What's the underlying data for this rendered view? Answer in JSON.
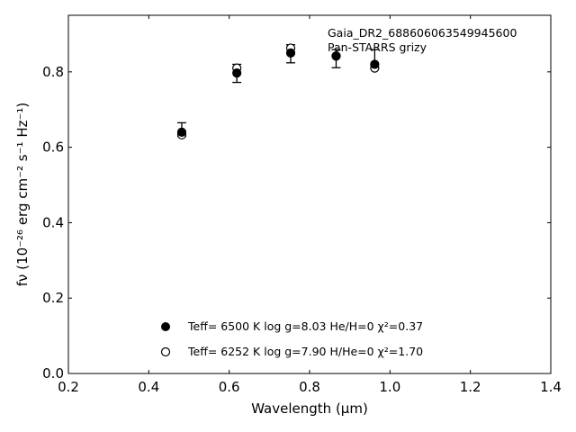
{
  "chart_data": {
    "type": "scatter",
    "annotation": [
      "Gaia_DR2_688606063549945600",
      "Pan-STARRS grizy"
    ],
    "xlabel": "Wavelength (μm)",
    "ylabel": "fν (10⁻²⁶ erg cm⁻² s⁻¹ Hz⁻¹)",
    "xlim": [
      0.2,
      1.4
    ],
    "ylim": [
      0.0,
      0.95
    ],
    "xticks": [
      0.2,
      0.4,
      0.6,
      0.8,
      1.0,
      1.2,
      1.4
    ],
    "xtick_labels": [
      "0.2",
      "0.4",
      "0.6",
      "0.8",
      "1.0",
      "1.2",
      "1.4"
    ],
    "yticks": [
      0.0,
      0.2,
      0.4,
      0.6,
      0.8
    ],
    "ytick_labels": [
      "0.0",
      "0.2",
      "0.4",
      "0.6",
      "0.8"
    ],
    "grid": false,
    "legend_position": "lower-center",
    "observed": {
      "x": [
        0.482,
        0.619,
        0.753,
        0.866,
        0.962
      ],
      "y": [
        0.647,
        0.796,
        0.848,
        0.835,
        0.835
      ],
      "yerr": [
        0.018,
        0.024,
        0.024,
        0.024,
        0.024
      ]
    },
    "series": [
      {
        "name": "Teff= 6500 K log g=8.03 He/H=0 χ²=0.37",
        "marker": "filled-circle",
        "color": "#000000",
        "x": [
          0.482,
          0.619,
          0.753,
          0.866,
          0.962
        ],
        "y": [
          0.64,
          0.797,
          0.85,
          0.842,
          0.82
        ]
      },
      {
        "name": "Teff= 6252 K log g=7.90 H/He=0 χ²=1.70",
        "marker": "open-circle",
        "color": "#000000",
        "x": [
          0.482,
          0.619,
          0.753,
          0.866,
          0.962
        ],
        "y": [
          0.633,
          0.81,
          0.863,
          0.842,
          0.81
        ]
      }
    ]
  }
}
